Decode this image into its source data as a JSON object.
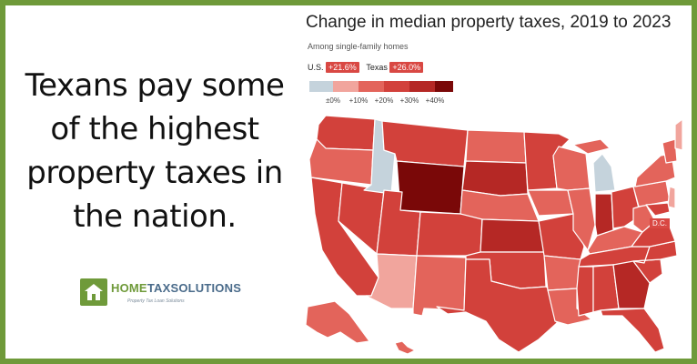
{
  "headline": {
    "line1": "Texans pay some",
    "line2": "of the highest",
    "line3": "property taxes in",
    "line4": "the nation."
  },
  "logo": {
    "name_part1": "HOME",
    "name_part2": "TAXSOLUTIONS",
    "tagline": "Property Tax Loan Solutions",
    "icon": "house-icon"
  },
  "map": {
    "title": "Change in median property taxes, 2019 to 2023",
    "subtitle": "Among single-family homes",
    "us_label": "U.S.",
    "us_value": "+21.6%",
    "texas_label": "Texas",
    "texas_value": "+26.0%",
    "scale_ticks": [
      "±0%",
      "+10%",
      "+20%",
      "+30%",
      "+40%"
    ],
    "scale_colors": [
      "#c5d3dc",
      "#f1a59d",
      "#e3645b",
      "#d2413b",
      "#b52825",
      "#7a0808"
    ],
    "dc_label": "D.C.",
    "badge_color": "#d94843"
  }
}
